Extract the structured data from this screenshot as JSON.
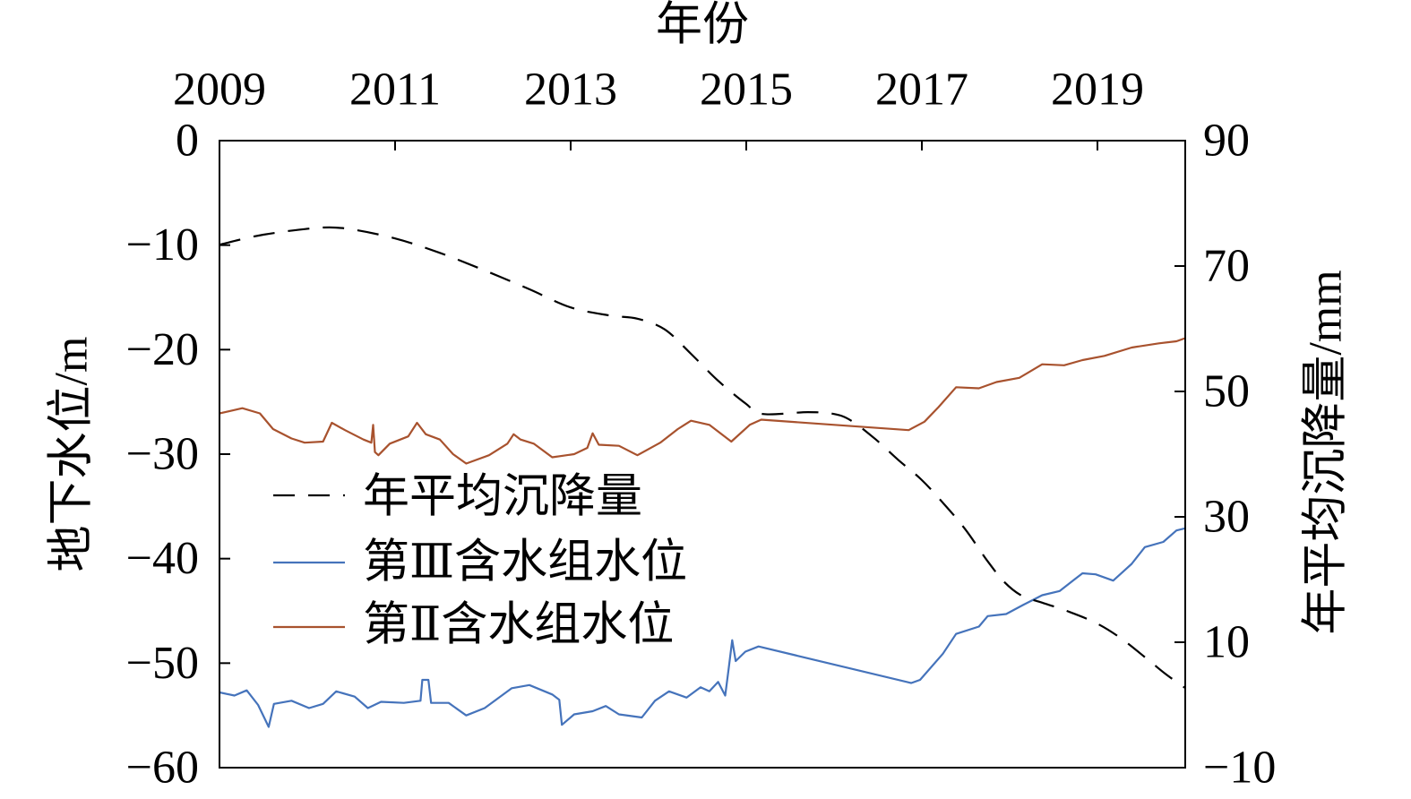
{
  "chart_data": {
    "type": "line",
    "xlabel": "年份",
    "ylabel": "地下水位/m",
    "y2label": "年平均沉降量/mm",
    "xaxis_on_top": true,
    "xlim": [
      2009,
      2020
    ],
    "ylim": [
      -60,
      0
    ],
    "y2lim": [
      -10,
      90
    ],
    "x_ticks": [
      "2009",
      "2011",
      "2013",
      "2015",
      "2017",
      "2019"
    ],
    "y_ticks": [
      "0",
      "−10",
      "−20",
      "−30",
      "−40",
      "−50",
      "−60"
    ],
    "y2_ticks": [
      "90",
      "70",
      "50",
      "30",
      "10",
      "−10"
    ],
    "grid": false,
    "legend": "center-left",
    "series": [
      {
        "name": "年平均沉降量",
        "secondary_axis": true,
        "dashed": true,
        "color": "#000000",
        "x": [
          2009.0,
          2009.5,
          2010.13,
          2010.48,
          2011.0,
          2011.51,
          2012.02,
          2012.53,
          2013.0,
          2013.45,
          2013.76,
          2014.07,
          2014.37,
          2014.68,
          2014.99,
          2015.19,
          2015.7,
          2016.0,
          2016.2,
          2016.47,
          2016.73,
          2016.99,
          2017.23,
          2017.49,
          2017.74,
          2017.94,
          2018.14,
          2018.35,
          2018.65,
          2018.98,
          2019.26,
          2019.56,
          2019.77,
          2020.0
        ],
        "y": [
          73.4,
          75.0,
          76.1,
          75.9,
          74.4,
          72.1,
          69.3,
          66.3,
          63.4,
          62.1,
          61.6,
          59.9,
          56.0,
          51.7,
          48.1,
          46.4,
          46.7,
          46.4,
          45.3,
          42.4,
          39.1,
          36.0,
          32.4,
          28.1,
          23.1,
          19.6,
          17.4,
          16.4,
          15.0,
          13.1,
          10.7,
          7.4,
          5.0,
          2.7
        ]
      },
      {
        "name": "第Ⅲ含水组水位",
        "secondary_axis": false,
        "dashed": false,
        "color": "#4573bb",
        "x": [
          2009.0,
          2009.17,
          2009.31,
          2009.44,
          2009.56,
          2009.62,
          2009.82,
          2010.02,
          2010.18,
          2010.33,
          2010.54,
          2010.69,
          2010.84,
          2011.1,
          2011.29,
          2011.31,
          2011.38,
          2011.41,
          2011.61,
          2011.81,
          2012.02,
          2012.33,
          2012.53,
          2012.79,
          2012.87,
          2012.9,
          2013.04,
          2013.25,
          2013.4,
          2013.55,
          2013.81,
          2013.96,
          2014.12,
          2014.32,
          2014.48,
          2014.58,
          2014.68,
          2014.76,
          2014.8,
          2014.84,
          2014.88,
          2014.99,
          2015.14,
          2016.88,
          2016.98,
          2017.24,
          2017.39,
          2017.65,
          2017.75,
          2017.96,
          2018.16,
          2018.37,
          2018.57,
          2018.72,
          2018.83,
          2018.98,
          2019.18,
          2019.39,
          2019.54,
          2019.75,
          2019.9,
          2020.0
        ],
        "y": [
          -52.8,
          -53.1,
          -52.6,
          -54.0,
          -56.1,
          -53.9,
          -53.6,
          -54.3,
          -53.9,
          -52.7,
          -53.2,
          -54.3,
          -53.7,
          -53.8,
          -53.6,
          -51.6,
          -51.6,
          -53.8,
          -53.8,
          -55.0,
          -54.3,
          -52.4,
          -52.1,
          -53.0,
          -53.5,
          -55.9,
          -54.9,
          -54.6,
          -54.1,
          -54.9,
          -55.2,
          -53.6,
          -52.7,
          -53.3,
          -52.3,
          -52.7,
          -51.8,
          -53.1,
          -50.5,
          -47.8,
          -49.8,
          -48.9,
          -48.4,
          -51.9,
          -51.6,
          -49.1,
          -47.2,
          -46.5,
          -45.5,
          -45.3,
          -44.4,
          -43.5,
          -43.1,
          -42.1,
          -41.4,
          -41.5,
          -42.1,
          -40.5,
          -38.9,
          -38.4,
          -37.3,
          -37.1
        ]
      },
      {
        "name": "第Ⅱ含水组水位",
        "secondary_axis": false,
        "dashed": false,
        "color": "#a8522e",
        "x": [
          2009.0,
          2009.26,
          2009.46,
          2009.61,
          2009.82,
          2009.97,
          2010.18,
          2010.28,
          2010.43,
          2010.64,
          2010.73,
          2010.75,
          2010.77,
          2010.81,
          2010.94,
          2011.15,
          2011.25,
          2011.35,
          2011.51,
          2011.66,
          2011.81,
          2012.07,
          2012.28,
          2012.35,
          2012.43,
          2012.58,
          2012.79,
          2013.04,
          2013.19,
          2013.25,
          2013.32,
          2013.55,
          2013.76,
          2014.02,
          2014.22,
          2014.37,
          2014.58,
          2014.83,
          2015.04,
          2015.17,
          2016.85,
          2017.03,
          2017.19,
          2017.39,
          2017.65,
          2017.85,
          2018.11,
          2018.37,
          2018.62,
          2018.83,
          2019.08,
          2019.39,
          2019.7,
          2019.9,
          2020.0
        ],
        "y": [
          -26.1,
          -25.6,
          -26.1,
          -27.6,
          -28.5,
          -28.9,
          -28.8,
          -27.0,
          -27.7,
          -28.6,
          -28.9,
          -27.2,
          -29.8,
          -30.1,
          -29.0,
          -28.3,
          -27.0,
          -28.1,
          -28.6,
          -30.0,
          -30.9,
          -30.1,
          -29.0,
          -28.1,
          -28.6,
          -29.0,
          -30.3,
          -30.0,
          -29.4,
          -28.0,
          -29.1,
          -29.2,
          -30.1,
          -28.9,
          -27.6,
          -26.8,
          -27.2,
          -28.8,
          -27.2,
          -26.7,
          -27.7,
          -26.9,
          -25.5,
          -23.6,
          -23.7,
          -23.1,
          -22.7,
          -21.4,
          -21.5,
          -21.0,
          -20.6,
          -19.8,
          -19.4,
          -19.2,
          -18.9
        ]
      }
    ]
  }
}
